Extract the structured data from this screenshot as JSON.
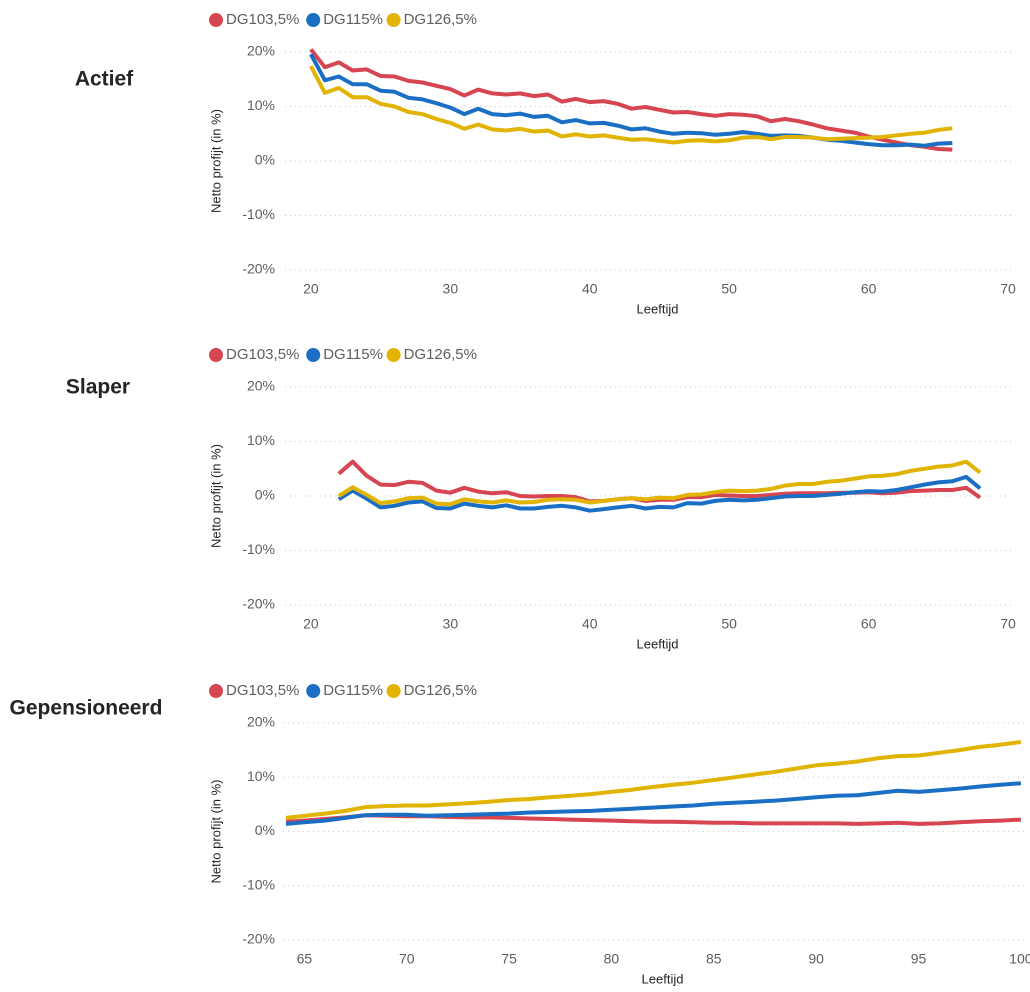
{
  "chart_data": [
    {
      "type": "line",
      "title": "Actief",
      "xlabel": "Leeftijd",
      "ylabel": "Netto profijt (in %)",
      "xlim": [
        18.5,
        70.5
      ],
      "ylim": [
        -20,
        20
      ],
      "xticks": [
        20,
        30,
        40,
        50,
        60,
        70
      ],
      "yticks": [
        20,
        10,
        0,
        -10,
        -20
      ],
      "ytick_labels": [
        "20%",
        "10%",
        "0%",
        "-10%",
        "-20%"
      ],
      "grid": true,
      "legend": "top-left",
      "series": [
        {
          "name": "DG103,5%",
          "color": "#d64550",
          "x": [
            20,
            21,
            22,
            23,
            24,
            25,
            26,
            27,
            28,
            29,
            30,
            31,
            32,
            33,
            34,
            35,
            36,
            37,
            38,
            39,
            40,
            41,
            42,
            43,
            44,
            45,
            46,
            47,
            48,
            49,
            50,
            51,
            52,
            53,
            54,
            55,
            56,
            57,
            58,
            59,
            60,
            61,
            62,
            63,
            64,
            65,
            66
          ],
          "y": [
            20.5,
            17.2,
            18.1,
            16.6,
            16.8,
            15.6,
            15.5,
            14.7,
            14.4,
            13.8,
            13.2,
            12.0,
            13.1,
            12.4,
            12.2,
            12.4,
            11.9,
            12.2,
            10.9,
            11.4,
            10.8,
            11.0,
            10.5,
            9.6,
            9.9,
            9.4,
            8.9,
            9.0,
            8.6,
            8.3,
            8.6,
            8.5,
            8.2,
            7.3,
            7.7,
            7.3,
            6.7,
            6.0,
            5.6,
            5.2,
            4.5,
            3.9,
            3.4,
            2.9,
            2.6,
            2.2,
            2.1
          ]
        },
        {
          "name": "DG115%",
          "color": "#1a6fc4",
          "x": [
            20,
            21,
            22,
            23,
            24,
            25,
            26,
            27,
            28,
            29,
            30,
            31,
            32,
            33,
            34,
            35,
            36,
            37,
            38,
            39,
            40,
            41,
            42,
            43,
            44,
            45,
            46,
            47,
            48,
            49,
            50,
            51,
            52,
            53,
            54,
            55,
            56,
            57,
            58,
            59,
            60,
            61,
            62,
            63,
            64,
            65,
            66
          ],
          "y": [
            19.6,
            14.8,
            15.5,
            14.1,
            14.1,
            12.9,
            12.7,
            11.6,
            11.3,
            10.6,
            9.8,
            8.6,
            9.6,
            8.6,
            8.4,
            8.7,
            8.1,
            8.3,
            7.1,
            7.5,
            6.9,
            7.0,
            6.5,
            5.8,
            6.0,
            5.4,
            5.0,
            5.2,
            5.1,
            4.8,
            5.0,
            5.3,
            5.0,
            4.6,
            4.7,
            4.6,
            4.3,
            3.9,
            3.7,
            3.4,
            3.1,
            2.9,
            2.9,
            3.0,
            2.8,
            3.2,
            3.3
          ]
        },
        {
          "name": "DG126,5%",
          "color": "#e0b400",
          "x": [
            20,
            21,
            22,
            23,
            24,
            25,
            26,
            27,
            28,
            29,
            30,
            31,
            32,
            33,
            34,
            35,
            36,
            37,
            38,
            39,
            40,
            41,
            42,
            43,
            44,
            45,
            46,
            47,
            48,
            49,
            50,
            51,
            52,
            53,
            54,
            55,
            56,
            57,
            58,
            59,
            60,
            61,
            62,
            63,
            64,
            65,
            66
          ],
          "y": [
            17.4,
            12.5,
            13.4,
            11.7,
            11.7,
            10.5,
            10.0,
            9.0,
            8.6,
            7.7,
            7.0,
            5.9,
            6.7,
            5.8,
            5.6,
            5.9,
            5.4,
            5.6,
            4.5,
            4.9,
            4.5,
            4.7,
            4.3,
            3.9,
            4.0,
            3.7,
            3.4,
            3.7,
            3.8,
            3.6,
            3.8,
            4.3,
            4.4,
            4.0,
            4.4,
            4.4,
            4.3,
            4.0,
            4.1,
            4.2,
            4.3,
            4.4,
            4.7,
            5.0,
            5.2,
            5.7,
            6.0
          ]
        }
      ]
    },
    {
      "type": "line",
      "title": "Slaper",
      "xlabel": "Leeftijd",
      "ylabel": "Netto profijt (in %)",
      "xlim": [
        18.5,
        70.5
      ],
      "ylim": [
        -20,
        20
      ],
      "xticks": [
        20,
        30,
        40,
        50,
        60,
        70
      ],
      "yticks": [
        20,
        10,
        0,
        -10,
        -20
      ],
      "ytick_labels": [
        "20%",
        "10%",
        "0%",
        "-10%",
        "-20%"
      ],
      "grid": true,
      "legend": "top-left",
      "series": [
        {
          "name": "DG103,5%",
          "color": "#d64550",
          "x": [
            22,
            23,
            24,
            25,
            26,
            27,
            28,
            29,
            30,
            31,
            32,
            33,
            34,
            35,
            36,
            37,
            38,
            39,
            40,
            41,
            42,
            43,
            44,
            45,
            46,
            47,
            48,
            49,
            50,
            51,
            52,
            53,
            54,
            55,
            56,
            57,
            58,
            59,
            60,
            61,
            62,
            63,
            64,
            65,
            66,
            67,
            68
          ],
          "y": [
            4.1,
            6.3,
            3.7,
            2.1,
            2.0,
            2.6,
            2.4,
            1.0,
            0.6,
            1.5,
            0.8,
            0.5,
            0.7,
            0.0,
            -0.1,
            0.0,
            0.0,
            -0.2,
            -1.0,
            -0.9,
            -0.6,
            -0.4,
            -0.9,
            -0.7,
            -0.7,
            -0.2,
            -0.2,
            0.2,
            0.1,
            0.0,
            0.0,
            0.2,
            0.4,
            0.5,
            0.5,
            0.5,
            0.6,
            0.6,
            0.7,
            0.5,
            0.6,
            0.9,
            1.0,
            1.1,
            1.1,
            1.5,
            -0.3
          ]
        },
        {
          "name": "DG115%",
          "color": "#1a6fc4",
          "x": [
            22,
            23,
            24,
            25,
            26,
            27,
            28,
            29,
            30,
            31,
            32,
            33,
            34,
            35,
            36,
            37,
            38,
            39,
            40,
            41,
            42,
            43,
            44,
            45,
            46,
            47,
            48,
            49,
            50,
            51,
            52,
            53,
            54,
            55,
            56,
            57,
            58,
            59,
            60,
            61,
            62,
            63,
            64,
            65,
            66,
            67,
            68
          ],
          "y": [
            -0.6,
            1.0,
            -0.5,
            -2.1,
            -1.8,
            -1.2,
            -1.0,
            -2.2,
            -2.3,
            -1.4,
            -1.8,
            -2.1,
            -1.7,
            -2.3,
            -2.3,
            -2.0,
            -1.8,
            -2.1,
            -2.7,
            -2.4,
            -2.1,
            -1.8,
            -2.3,
            -2.0,
            -2.1,
            -1.3,
            -1.4,
            -0.9,
            -0.7,
            -0.8,
            -0.7,
            -0.4,
            -0.1,
            0.0,
            0.0,
            0.2,
            0.4,
            0.7,
            0.9,
            0.8,
            1.1,
            1.6,
            2.1,
            2.5,
            2.7,
            3.5,
            1.4
          ]
        },
        {
          "name": "DG126,5%",
          "color": "#e0b400",
          "x": [
            22,
            23,
            24,
            25,
            26,
            27,
            28,
            29,
            30,
            31,
            32,
            33,
            34,
            35,
            36,
            37,
            38,
            39,
            40,
            41,
            42,
            43,
            44,
            45,
            46,
            47,
            48,
            49,
            50,
            51,
            52,
            53,
            54,
            55,
            56,
            57,
            58,
            59,
            60,
            61,
            62,
            63,
            64,
            65,
            66,
            67,
            68
          ],
          "y": [
            0.0,
            1.6,
            0.2,
            -1.3,
            -1.0,
            -0.4,
            -0.3,
            -1.4,
            -1.5,
            -0.6,
            -1.0,
            -1.2,
            -0.8,
            -1.2,
            -1.1,
            -0.7,
            -0.6,
            -0.7,
            -1.2,
            -0.9,
            -0.6,
            -0.4,
            -0.6,
            -0.3,
            -0.4,
            0.2,
            0.3,
            0.7,
            1.0,
            0.9,
            1.0,
            1.3,
            1.9,
            2.2,
            2.2,
            2.6,
            2.8,
            3.2,
            3.6,
            3.7,
            4.0,
            4.6,
            5.0,
            5.4,
            5.6,
            6.3,
            4.3
          ]
        }
      ]
    },
    {
      "type": "line",
      "title": "Gepensioneerd",
      "xlabel": "Leeftijd",
      "ylabel": "Netto profijt (in %)",
      "xlim": [
        64.2,
        100.3
      ],
      "ylim": [
        -20,
        20
      ],
      "xticks": [
        65,
        70,
        75,
        80,
        85,
        90,
        95,
        100
      ],
      "yticks": [
        20,
        10,
        0,
        -10,
        -20
      ],
      "ytick_labels": [
        "20%",
        "10%",
        "0%",
        "-10%",
        "-20%"
      ],
      "grid": true,
      "legend": "top-left",
      "series": [
        {
          "name": "DG103,5%",
          "color": "#d64550",
          "x": [
            64,
            65,
            66,
            67,
            68,
            69,
            70,
            71,
            72,
            73,
            74,
            75,
            76,
            77,
            78,
            79,
            80,
            81,
            82,
            83,
            84,
            85,
            86,
            87,
            88,
            89,
            90,
            91,
            92,
            93,
            94,
            95,
            96,
            97,
            98,
            99,
            100
          ],
          "y": [
            1.8,
            2.0,
            2.3,
            2.6,
            3.0,
            2.9,
            2.8,
            2.8,
            2.7,
            2.6,
            2.6,
            2.5,
            2.4,
            2.3,
            2.2,
            2.1,
            2.0,
            1.9,
            1.8,
            1.8,
            1.7,
            1.6,
            1.6,
            1.5,
            1.5,
            1.5,
            1.5,
            1.5,
            1.4,
            1.5,
            1.6,
            1.4,
            1.5,
            1.7,
            1.9,
            2.0,
            2.2
          ]
        },
        {
          "name": "DG115%",
          "color": "#1a6fc4",
          "x": [
            64,
            65,
            66,
            67,
            68,
            69,
            70,
            71,
            72,
            73,
            74,
            75,
            76,
            77,
            78,
            79,
            80,
            81,
            82,
            83,
            84,
            85,
            86,
            87,
            88,
            89,
            90,
            91,
            92,
            93,
            94,
            95,
            96,
            97,
            98,
            99,
            100
          ],
          "y": [
            1.4,
            1.7,
            2.0,
            2.5,
            3.0,
            3.1,
            3.1,
            2.9,
            3.0,
            3.1,
            3.2,
            3.3,
            3.5,
            3.6,
            3.7,
            3.8,
            4.0,
            4.2,
            4.4,
            4.6,
            4.8,
            5.1,
            5.3,
            5.5,
            5.7,
            6.0,
            6.3,
            6.6,
            6.7,
            7.1,
            7.5,
            7.3,
            7.6,
            7.9,
            8.3,
            8.6,
            8.9
          ]
        },
        {
          "name": "DG126,5%",
          "color": "#e0b400",
          "x": [
            64,
            65,
            66,
            67,
            68,
            69,
            70,
            71,
            72,
            73,
            74,
            75,
            76,
            77,
            78,
            79,
            80,
            81,
            82,
            83,
            84,
            85,
            86,
            87,
            88,
            89,
            90,
            91,
            92,
            93,
            94,
            95,
            96,
            97,
            98,
            99,
            100
          ],
          "y": [
            2.5,
            2.9,
            3.3,
            3.8,
            4.5,
            4.7,
            4.8,
            4.8,
            5.0,
            5.2,
            5.5,
            5.8,
            6.0,
            6.3,
            6.6,
            6.9,
            7.3,
            7.7,
            8.2,
            8.6,
            9.0,
            9.5,
            10.0,
            10.5,
            11.0,
            11.6,
            12.2,
            12.5,
            12.9,
            13.5,
            13.9,
            14.0,
            14.5,
            15.0,
            15.6,
            16.0,
            16.5
          ]
        }
      ]
    }
  ]
}
